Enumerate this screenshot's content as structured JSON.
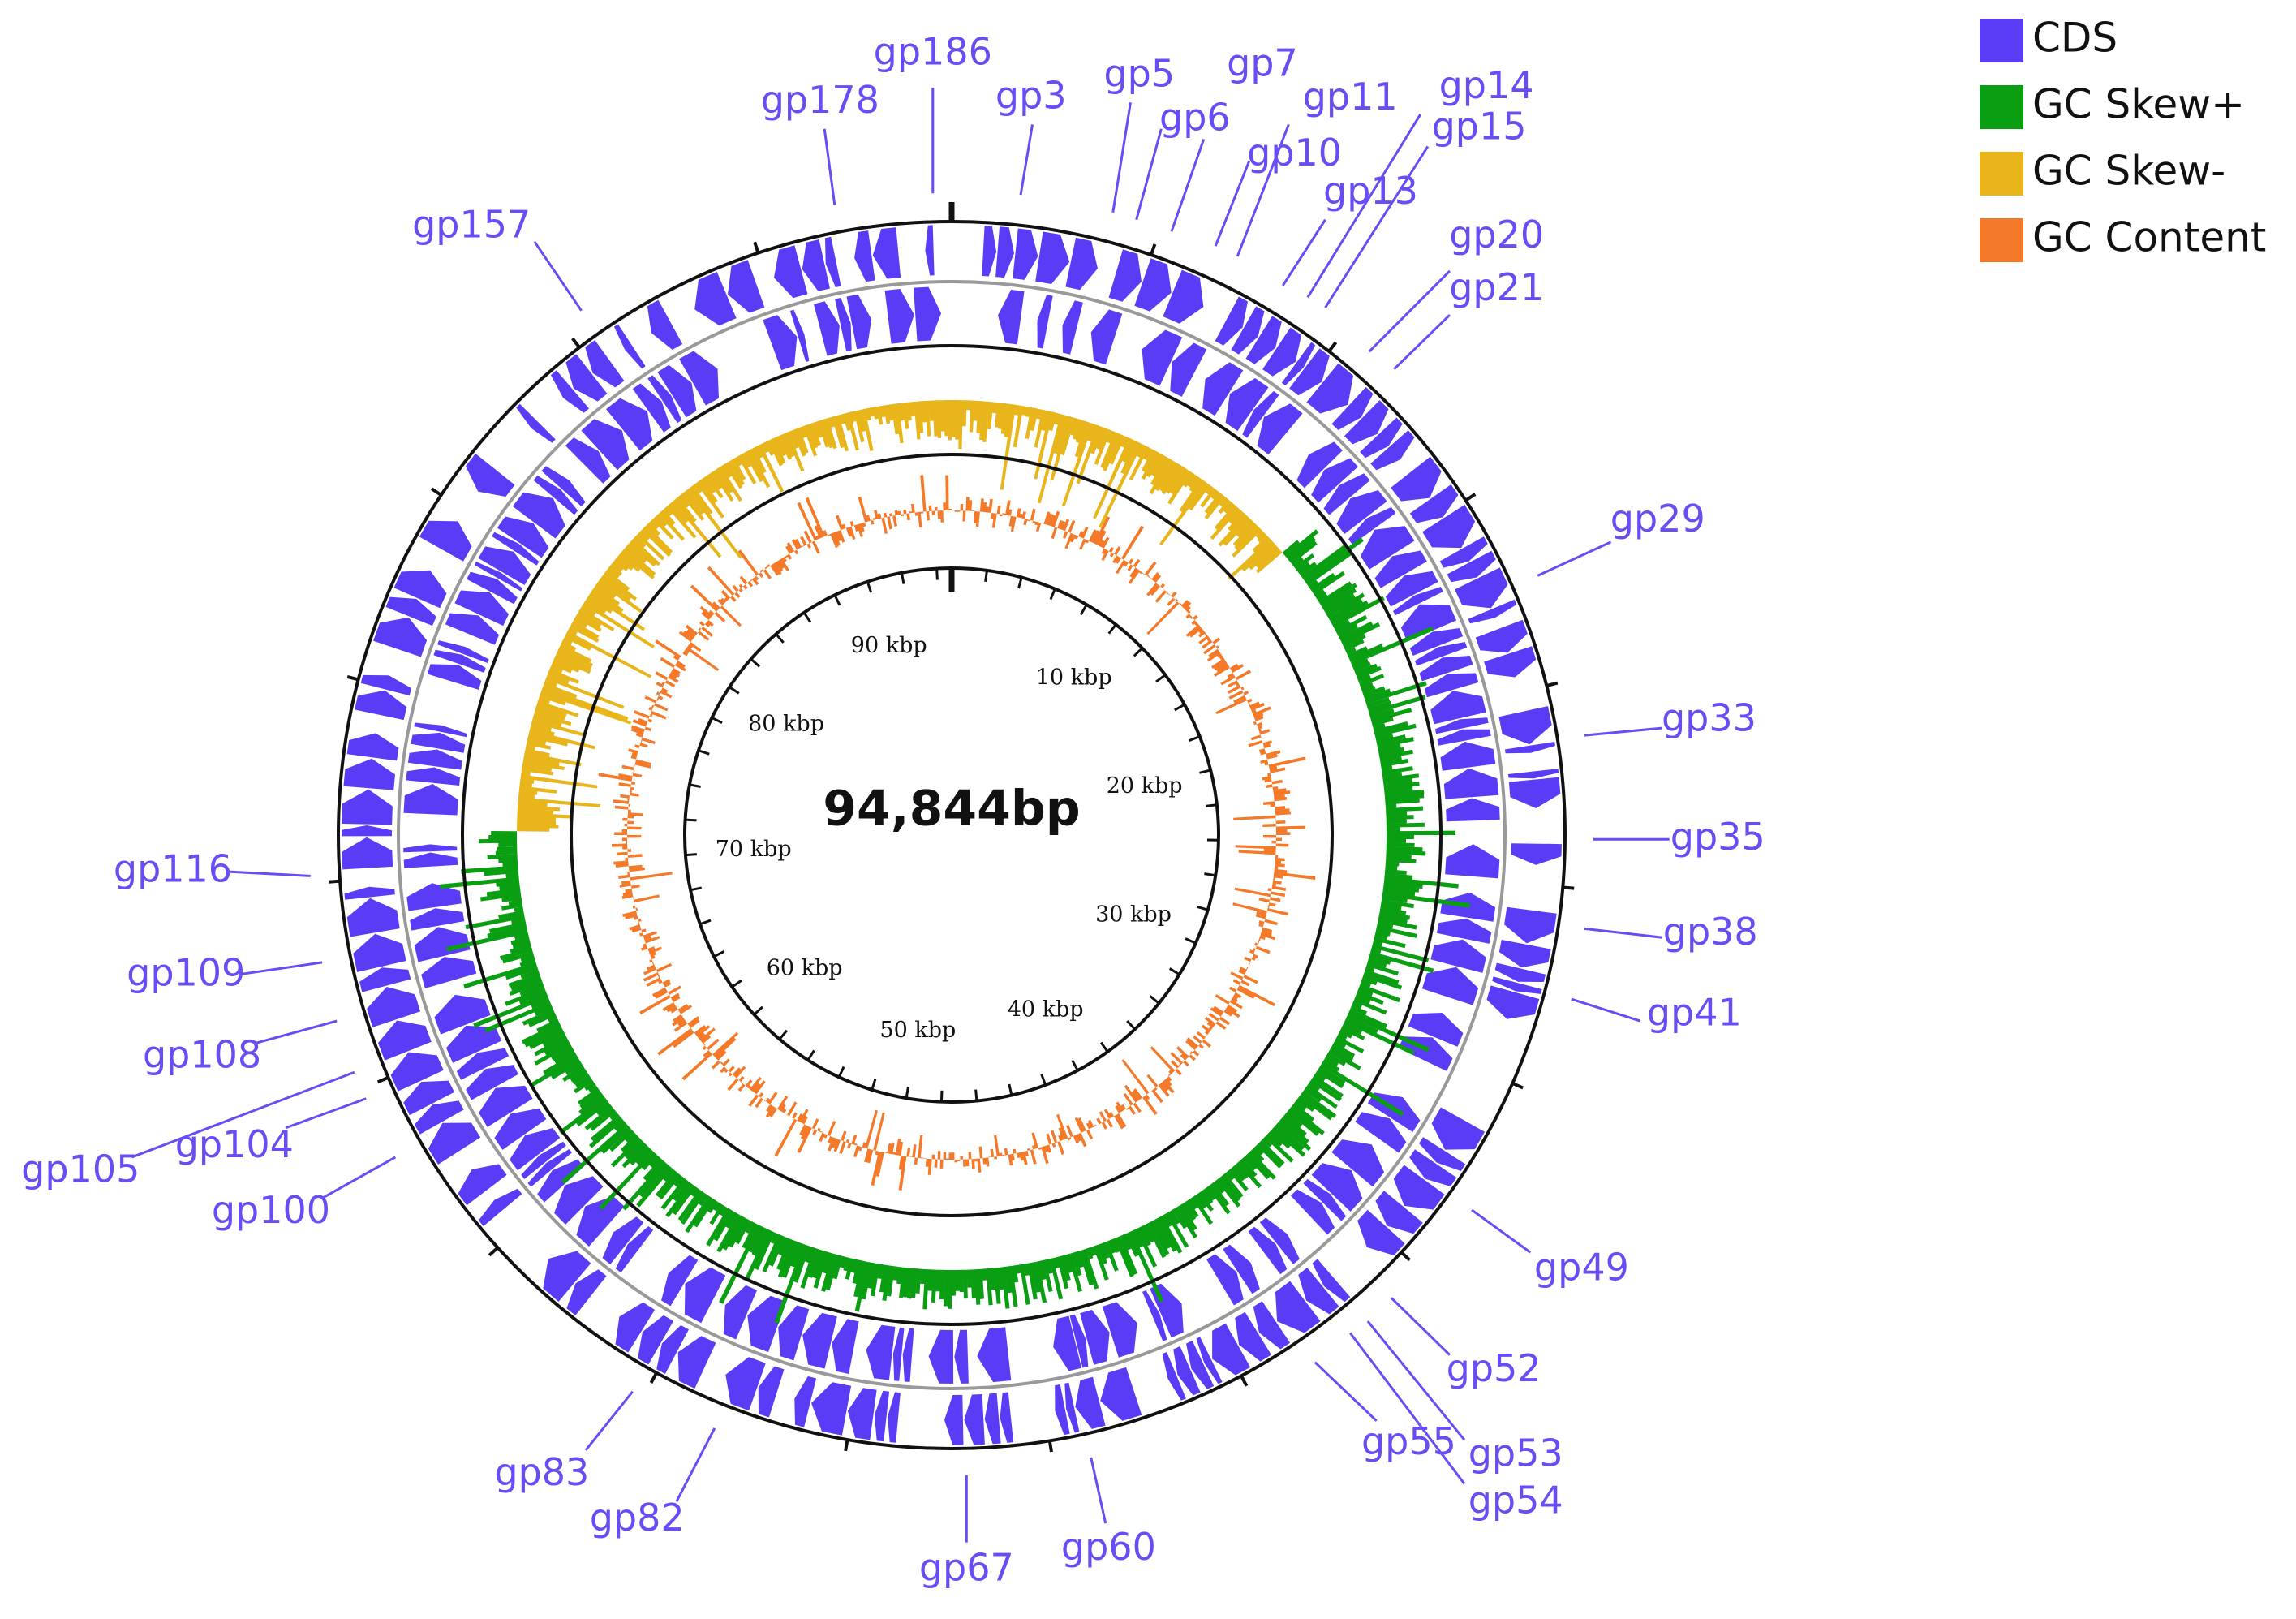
{
  "genome_length": {
    "value": 94844,
    "label": "94,844bp"
  },
  "ticks": [
    {
      "value": 10000,
      "label": "10 kbp"
    },
    {
      "value": 20000,
      "label": "20 kbp"
    },
    {
      "value": 30000,
      "label": "30 kbp"
    },
    {
      "value": 40000,
      "label": "40 kbp"
    },
    {
      "value": 50000,
      "label": "50 kbp"
    },
    {
      "value": 60000,
      "label": "60 kbp"
    },
    {
      "value": 70000,
      "label": "70 kbp"
    },
    {
      "value": 80000,
      "label": "80 kbp"
    },
    {
      "value": 90000,
      "label": "90 kbp"
    }
  ],
  "genes": [
    "gp186",
    "gp178",
    "gp3",
    "gp5",
    "gp6",
    "gp7",
    "gp10",
    "gp11",
    "gp13",
    "gp14",
    "gp15",
    "gp20",
    "gp21",
    "gp29",
    "gp33",
    "gp35",
    "gp38",
    "gp41",
    "gp49",
    "gp52",
    "gp53",
    "gp54",
    "gp55",
    "gp60",
    "gp67",
    "gp82",
    "gp83",
    "gp100",
    "gp104",
    "gp105",
    "gp108",
    "gp109",
    "gp116",
    "gp157"
  ],
  "legend": [
    {
      "name": "CDS",
      "color": "#5a3cf7"
    },
    {
      "name": "GC Skew+",
      "color": "#0a9e12"
    },
    {
      "name": "GC Skew-",
      "color": "#e8b51a"
    },
    {
      "name": "GC Content",
      "color": "#f47a2a"
    }
  ]
}
